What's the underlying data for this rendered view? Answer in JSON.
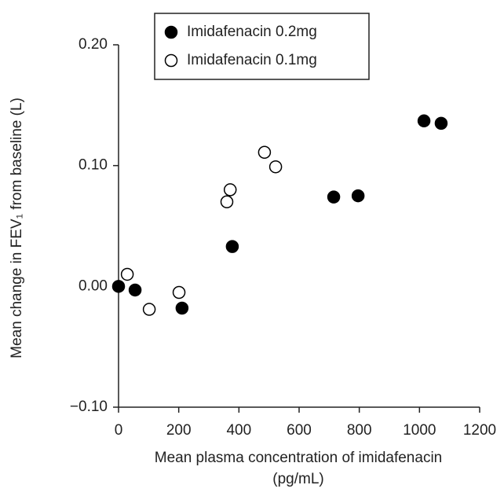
{
  "chart_data": {
    "type": "scatter",
    "xlabel": [
      "Mean plasma concentration of imidafenacin",
      "(pg/mL)"
    ],
    "ylabel": "Mean change in FEV₁ from baseline (L)",
    "xlim": [
      0,
      1200
    ],
    "xticks": [
      0,
      200,
      400,
      600,
      800,
      1000,
      1200
    ],
    "ylim": [
      -0.1,
      0.2
    ],
    "yticks": [
      {
        "value": -0.1,
        "label": "−0.10"
      },
      {
        "value": 0,
        "label": "0.00"
      },
      {
        "value": 0.1,
        "label": "0.10"
      },
      {
        "value": 0.2,
        "label": "0.20"
      }
    ],
    "legend": "top",
    "series": [
      {
        "name": "Imidafenacin 0.2mg",
        "color": "#000000",
        "x": [
          0,
          55,
          211,
          378,
          715,
          796,
          1015,
          1072
        ],
        "values": [
          0,
          -0.003,
          -0.018,
          0.033,
          0.074,
          0.075,
          0.137,
          0.135
        ]
      },
      {
        "name": "Imidafenacin 0.1mg",
        "color": "#ffffff",
        "x": [
          29,
          102,
          201,
          360,
          371,
          485,
          522
        ],
        "values": [
          0.01,
          -0.019,
          -0.005,
          0.07,
          0.08,
          0.111,
          0.099
        ]
      }
    ]
  }
}
